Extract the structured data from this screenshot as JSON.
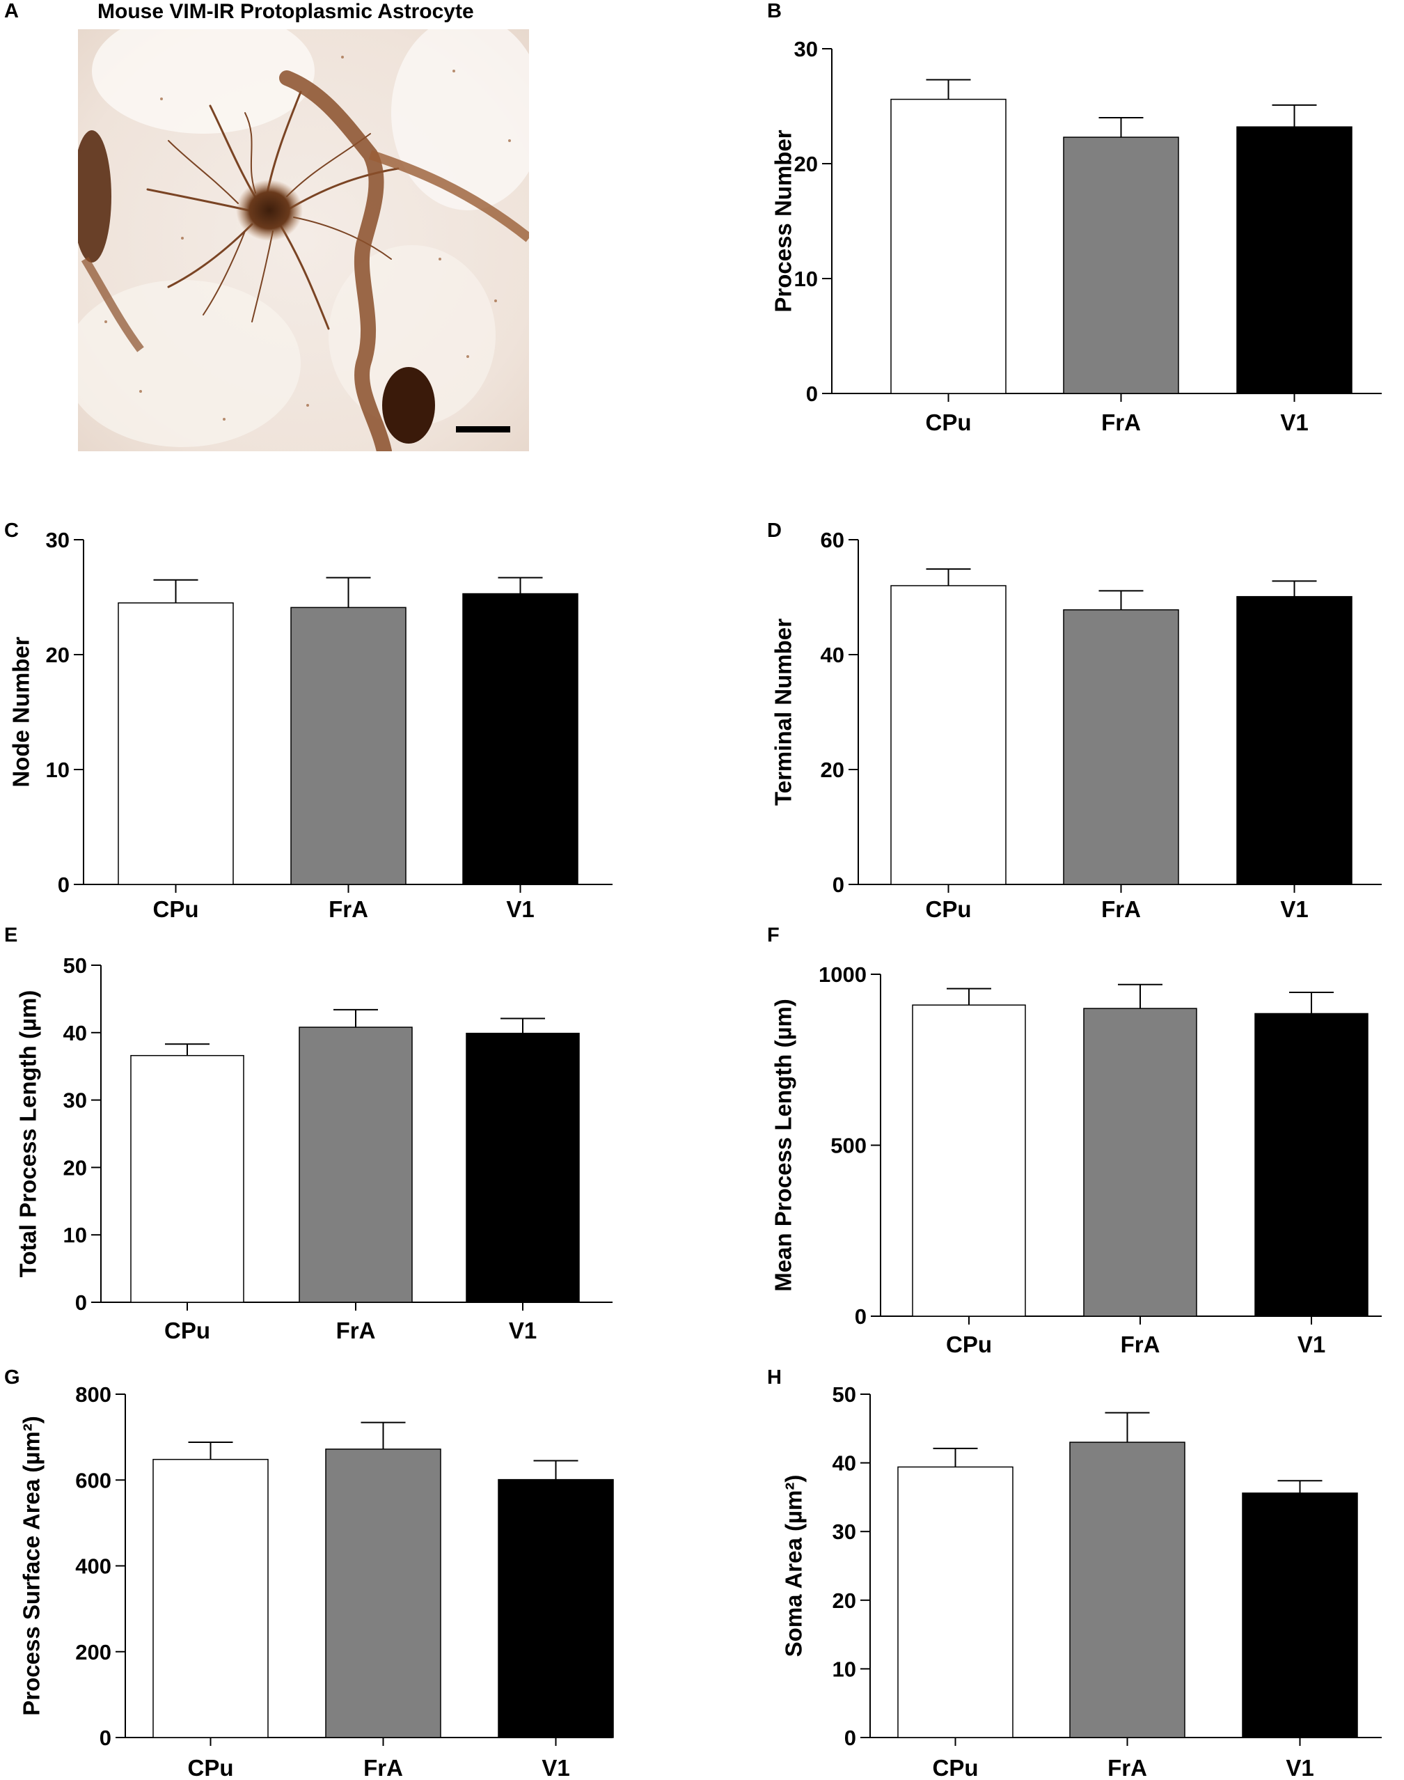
{
  "figure": {
    "panel_labels": [
      "A",
      "B",
      "C",
      "D",
      "E",
      "F",
      "G",
      "H"
    ],
    "micrograph": {
      "title": "Mouse VIM-IR Protoplasmic Astrocyte"
    }
  },
  "chart_data": [
    {
      "panel": "B",
      "type": "bar",
      "categories": [
        "CPu",
        "FrA",
        "V1"
      ],
      "values": [
        25.6,
        22.3,
        23.2
      ],
      "errors": [
        1.7,
        1.7,
        1.9
      ],
      "colors": [
        "#ffffff",
        "#808080",
        "#000000"
      ],
      "ylabel": "Process Number",
      "ylim": [
        0,
        30
      ],
      "yticks": [
        0,
        10,
        20,
        30
      ]
    },
    {
      "panel": "C",
      "type": "bar",
      "categories": [
        "CPu",
        "FrA",
        "V1"
      ],
      "values": [
        24.5,
        24.1,
        25.3
      ],
      "errors": [
        2.0,
        2.6,
        1.4
      ],
      "colors": [
        "#ffffff",
        "#808080",
        "#000000"
      ],
      "ylabel": "Node Number",
      "ylim": [
        0,
        30
      ],
      "yticks": [
        0,
        10,
        20,
        30
      ]
    },
    {
      "panel": "D",
      "type": "bar",
      "categories": [
        "CPu",
        "FrA",
        "V1"
      ],
      "values": [
        52,
        47.8,
        50.1
      ],
      "errors": [
        2.9,
        3.3,
        2.7
      ],
      "colors": [
        "#ffffff",
        "#808080",
        "#000000"
      ],
      "ylabel": "Terminal Number",
      "ylim": [
        0,
        60
      ],
      "yticks": [
        0,
        20,
        40,
        60
      ]
    },
    {
      "panel": "E",
      "type": "bar",
      "categories": [
        "CPu",
        "FrA",
        "V1"
      ],
      "values": [
        36.6,
        40.8,
        39.9
      ],
      "errors": [
        1.7,
        2.6,
        2.2
      ],
      "colors": [
        "#ffffff",
        "#808080",
        "#000000"
      ],
      "ylabel": "Total Process Length (µm)",
      "ylim": [
        0,
        50
      ],
      "yticks": [
        0,
        10,
        20,
        30,
        40,
        50
      ]
    },
    {
      "panel": "F",
      "type": "bar",
      "categories": [
        "CPu",
        "FrA",
        "V1"
      ],
      "values": [
        910,
        900,
        885
      ],
      "errors": [
        48,
        70,
        62
      ],
      "colors": [
        "#ffffff",
        "#808080",
        "#000000"
      ],
      "ylabel": "Mean Process Length (µm)",
      "ylim": [
        0,
        1000
      ],
      "yticks": [
        0,
        500,
        1000
      ]
    },
    {
      "panel": "G",
      "type": "bar",
      "categories": [
        "CPu",
        "FrA",
        "V1"
      ],
      "values": [
        648,
        672,
        601
      ],
      "errors": [
        40,
        62,
        44
      ],
      "colors": [
        "#ffffff",
        "#808080",
        "#000000"
      ],
      "ylabel": "Process Surface Area (µm²)",
      "ylim": [
        0,
        800
      ],
      "yticks": [
        0,
        200,
        400,
        600,
        800
      ]
    },
    {
      "panel": "H",
      "type": "bar",
      "categories": [
        "CPu",
        "FrA",
        "V1"
      ],
      "values": [
        39.4,
        43.0,
        35.6
      ],
      "errors": [
        2.7,
        4.3,
        1.8
      ],
      "colors": [
        "#ffffff",
        "#808080",
        "#000000"
      ],
      "ylabel": "Soma Area (µm²)",
      "ylim": [
        0,
        50
      ],
      "yticks": [
        0,
        10,
        20,
        30,
        40,
        50
      ]
    }
  ]
}
